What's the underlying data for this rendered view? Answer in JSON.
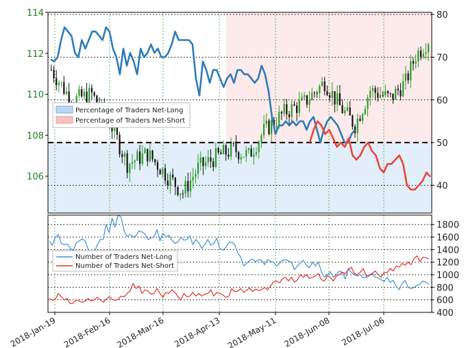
{
  "chart_data": [
    {
      "type": "candlestick+line",
      "title": "",
      "x_tick_labels": [
        "2018-Jan-19",
        "2018-Feb-16",
        "2018-Mar-16",
        "2018-Apr-13",
        "2018-May-11",
        "2018-Jun-08",
        "2018-Jul-06"
      ],
      "y_left": {
        "ticks": [
          106,
          108,
          110,
          112,
          114
        ],
        "range": [
          104.2,
          114.0
        ],
        "color": "#1e7d1e"
      },
      "y_right": {
        "ticks": [
          40,
          50,
          60,
          70,
          80
        ],
        "range": [
          33.5,
          80.5
        ]
      },
      "threshold": 50,
      "legend": {
        "position": "middle-left",
        "entries": [
          {
            "label": "Percentage of Traders Net-Long",
            "color": "#bcd8f2"
          },
          {
            "label": "Percentage of Traders Net-Short",
            "color": "#f6c3c3"
          }
        ]
      },
      "series": [
        {
          "label": "Percentage of Traders Net-Long",
          "color": "#2f7bb5",
          "values": [
            69.5,
            69,
            70,
            74,
            77,
            76,
            75,
            71,
            70,
            74,
            72,
            74,
            76,
            76,
            75,
            74,
            77,
            76,
            72,
            70,
            66,
            72,
            68,
            71,
            69,
            66,
            72,
            70,
            71,
            73,
            71,
            72,
            70,
            70,
            71,
            73,
            76,
            74,
            74,
            74,
            74,
            73,
            65,
            61,
            69,
            67,
            64,
            67,
            67,
            65,
            63,
            65,
            66,
            64,
            67,
            67,
            66,
            66,
            65,
            64,
            65,
            68,
            66,
            62,
            56,
            52,
            54,
            54,
            55,
            54,
            55,
            54,
            55,
            55,
            53,
            55,
            56,
            53,
            50,
            53,
            55,
            56,
            55,
            54,
            52,
            50,
            50,
            52,
            53
          ]
        },
        {
          "label": "Percentage of Traders Net-Short",
          "color": "#e8463b",
          "values": [
            50,
            53,
            55,
            54,
            52,
            53,
            51,
            49,
            50,
            49,
            51,
            47,
            46,
            47,
            49,
            50,
            48,
            47,
            44,
            43,
            45,
            45,
            46,
            47,
            45,
            40,
            39,
            39,
            40,
            41,
            43,
            42
          ]
        }
      ],
      "shading_note": "net-long percentages shown as blue fill, net-short as red fill",
      "candles_range": [
        104.6,
        113.1
      ]
    },
    {
      "type": "line",
      "y_ticks": [
        400,
        600,
        800,
        1000,
        1200,
        1400,
        1600,
        1800
      ],
      "range": [
        400,
        1950
      ],
      "legend": {
        "position": "middle-left",
        "entries": [
          {
            "label": "Number of Traders Net-Long",
            "color": "#3d8fd6"
          },
          {
            "label": "Number of Traders Net-Short",
            "color": "#e0302a"
          }
        ]
      },
      "series": [
        {
          "label": "Number of Traders Net-Long",
          "color": "#3d8fd6",
          "values": [
            1530,
            1470,
            1600,
            1640,
            1500,
            1480,
            1490,
            1420,
            1380,
            1510,
            1540,
            1570,
            1540,
            1400,
            1360,
            1360,
            1470,
            1560,
            1560,
            1800,
            1670,
            1900,
            1760,
            1950,
            1920,
            1700,
            1610,
            1640,
            1600,
            1620,
            1700,
            1680,
            1650,
            1560,
            1590,
            1600,
            1720,
            1540,
            1660,
            1600,
            1630,
            1550,
            1500,
            1520,
            1600,
            1550,
            1560,
            1620,
            1480,
            1560,
            1510,
            1420,
            1480,
            1560,
            1470,
            1500,
            1580,
            1420,
            1390,
            1430,
            1510,
            1520,
            1480,
            1350,
            1280,
            1140,
            1180,
            1230,
            1250,
            1210,
            1240,
            1230,
            1160,
            1240,
            1210,
            1200,
            1140,
            1180,
            1230,
            1240,
            1220,
            1200,
            1080,
            1140,
            1190,
            1230,
            1150,
            1110,
            1200,
            1140,
            1200,
            1050,
            960,
            1000,
            1050,
            960,
            1000,
            1060,
            1040,
            930,
            1100,
            1040,
            1000,
            980,
            1000,
            950,
            960,
            980,
            1020,
            960,
            950,
            920,
            890,
            960,
            880,
            910,
            820,
            760,
            860,
            910,
            800,
            780,
            800,
            830,
            850,
            900,
            880,
            850
          ]
        },
        {
          "label": "Number of Traders Net-Short",
          "color": "#e0302a",
          "values": [
            620,
            590,
            610,
            700,
            650,
            600,
            620,
            540,
            550,
            600,
            580,
            560,
            580,
            620,
            580,
            600,
            640,
            600,
            560,
            610,
            650,
            610,
            590,
            610,
            660,
            650,
            700,
            740,
            860,
            780,
            820,
            700,
            760,
            740,
            690,
            700,
            780,
            700,
            640,
            720,
            700,
            760,
            720,
            650,
            600,
            700,
            650,
            660,
            720,
            660,
            700,
            660,
            690,
            700,
            760,
            660,
            720,
            700,
            680,
            640,
            650,
            780,
            730,
            740,
            780,
            720,
            750,
            790,
            730,
            770,
            750,
            760,
            800,
            760,
            820,
            880,
            900,
            870,
            940,
            960,
            900,
            960,
            880,
            920,
            1000,
            960,
            1000,
            940,
            960,
            980,
            1020,
            920,
            900,
            980,
            960,
            900,
            980,
            1000,
            1040,
            1020,
            1080,
            1120,
            1020,
            1000,
            1040,
            1100,
            980,
            1000,
            1020,
            1060,
            1000,
            960,
            1040,
            1030,
            1100,
            1060,
            1140,
            1120,
            1180,
            1150,
            1200,
            1160,
            1260,
            1300,
            1210,
            1280,
            1270,
            1250
          ]
        }
      ]
    }
  ]
}
